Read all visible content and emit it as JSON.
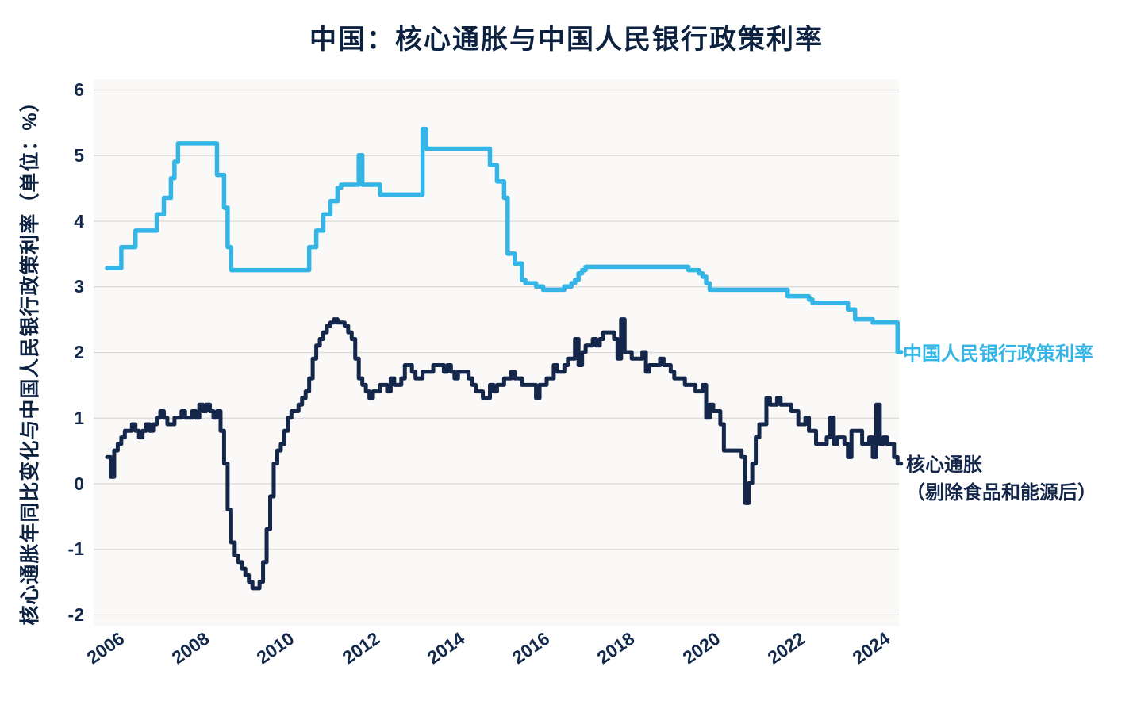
{
  "chart": {
    "title": "中国：核心通胀与中国人民银行政策利率",
    "ylabel": "核心通胀年同比变化与中国人民银行政策利率（单位：%）",
    "legend_policy": "中国人民银行政策利率",
    "legend_core_line1": "核心通胀",
    "legend_core_line2": "（剔除食品和能源后）"
  },
  "chart_data": {
    "type": "line",
    "title": "中国：核心通胀与中国人民银行政策利率",
    "ylabel": "核心通胀年同比变化与中国人民银行政策利率（单位：%）",
    "xlabel": "",
    "x_start_year": 2006,
    "x_frequency": "monthly",
    "xlim": [
      2006,
      2024.75
    ],
    "ylim": [
      -2,
      6
    ],
    "xticks": [
      2006,
      2008,
      2010,
      2012,
      2014,
      2016,
      2018,
      2020,
      2022,
      2024
    ],
    "yticks": [
      6,
      5,
      4,
      3,
      2,
      1,
      0,
      -1,
      -2
    ],
    "grid": "horizontal",
    "grid_color": "#d9d9d9",
    "text_color": "#13294b",
    "title_color": "#0d2240",
    "plot_bg_color": "#faf9f7",
    "legend_position": "right-of-line-end",
    "series": [
      {
        "name": "中国人民银行政策利率",
        "color": "#35b4e6",
        "line_width": 5.5,
        "step": true,
        "values": [
          3.28,
          3.28,
          3.28,
          3.28,
          3.6,
          3.6,
          3.6,
          3.6,
          3.85,
          3.85,
          3.85,
          3.85,
          3.85,
          3.85,
          4.1,
          4.1,
          4.35,
          4.35,
          4.65,
          4.9,
          5.18,
          5.18,
          5.18,
          5.18,
          5.18,
          5.18,
          5.18,
          5.18,
          5.18,
          5.18,
          5.18,
          4.7,
          4.7,
          4.2,
          3.6,
          3.25,
          3.25,
          3.25,
          3.25,
          3.25,
          3.25,
          3.25,
          3.25,
          3.25,
          3.25,
          3.25,
          3.25,
          3.25,
          3.25,
          3.25,
          3.25,
          3.25,
          3.25,
          3.25,
          3.25,
          3.25,
          3.25,
          3.6,
          3.6,
          3.85,
          3.85,
          4.1,
          4.1,
          4.3,
          4.3,
          4.5,
          4.55,
          4.55,
          4.55,
          4.55,
          4.55,
          5.0,
          4.55,
          4.55,
          4.55,
          4.55,
          4.55,
          4.4,
          4.4,
          4.4,
          4.4,
          4.4,
          4.4,
          4.4,
          4.4,
          4.4,
          4.4,
          4.4,
          4.4,
          5.4,
          5.1,
          5.1,
          5.1,
          5.1,
          5.1,
          5.1,
          5.1,
          5.1,
          5.1,
          5.1,
          5.1,
          5.1,
          5.1,
          5.1,
          5.1,
          5.1,
          5.1,
          5.1,
          4.85,
          4.85,
          4.6,
          4.6,
          4.35,
          3.5,
          3.5,
          3.35,
          3.35,
          3.1,
          3.05,
          3.05,
          3.05,
          3.0,
          3.0,
          2.95,
          2.95,
          2.95,
          2.95,
          2.95,
          2.95,
          3.0,
          3.0,
          3.05,
          3.1,
          3.2,
          3.25,
          3.3,
          3.3,
          3.3,
          3.3,
          3.3,
          3.3,
          3.3,
          3.3,
          3.3,
          3.3,
          3.3,
          3.3,
          3.3,
          3.3,
          3.3,
          3.3,
          3.3,
          3.3,
          3.3,
          3.3,
          3.3,
          3.3,
          3.3,
          3.3,
          3.3,
          3.3,
          3.3,
          3.3,
          3.3,
          3.25,
          3.25,
          3.25,
          3.2,
          3.15,
          3.05,
          2.95,
          2.95,
          2.95,
          2.95,
          2.95,
          2.95,
          2.95,
          2.95,
          2.95,
          2.95,
          2.95,
          2.95,
          2.95,
          2.95,
          2.95,
          2.95,
          2.95,
          2.95,
          2.95,
          2.95,
          2.95,
          2.95,
          2.85,
          2.85,
          2.85,
          2.85,
          2.85,
          2.85,
          2.8,
          2.75,
          2.75,
          2.75,
          2.75,
          2.75,
          2.75,
          2.75,
          2.75,
          2.75,
          2.75,
          2.65,
          2.65,
          2.5,
          2.5,
          2.5,
          2.5,
          2.5,
          2.45,
          2.45,
          2.45,
          2.45,
          2.45,
          2.45,
          2.45,
          2.0
        ]
      },
      {
        "name": "核心通胀（剔除食品和能源后）",
        "color": "#14274a",
        "line_width": 5,
        "step": true,
        "values": [
          0.4,
          0.1,
          0.5,
          0.6,
          0.7,
          0.8,
          0.8,
          0.9,
          0.8,
          0.7,
          0.8,
          0.9,
          0.8,
          0.9,
          1.0,
          1.1,
          1.0,
          0.9,
          0.9,
          1.0,
          1.0,
          1.1,
          1.0,
          1.0,
          1.1,
          1.0,
          1.2,
          1.1,
          1.2,
          1.1,
          1.0,
          1.1,
          0.8,
          0.3,
          -0.4,
          -0.9,
          -1.1,
          -1.2,
          -1.3,
          -1.4,
          -1.5,
          -1.6,
          -1.6,
          -1.5,
          -1.2,
          -0.7,
          -0.2,
          0.3,
          0.5,
          0.6,
          0.8,
          1.0,
          1.1,
          1.1,
          1.2,
          1.3,
          1.4,
          1.6,
          1.9,
          2.1,
          2.2,
          2.3,
          2.4,
          2.45,
          2.5,
          2.45,
          2.45,
          2.4,
          2.3,
          2.2,
          1.9,
          1.6,
          1.5,
          1.4,
          1.3,
          1.4,
          1.4,
          1.5,
          1.5,
          1.4,
          1.6,
          1.5,
          1.5,
          1.6,
          1.8,
          1.8,
          1.7,
          1.6,
          1.6,
          1.7,
          1.7,
          1.7,
          1.8,
          1.8,
          1.8,
          1.7,
          1.8,
          1.7,
          1.6,
          1.7,
          1.7,
          1.7,
          1.6,
          1.5,
          1.4,
          1.4,
          1.3,
          1.3,
          1.5,
          1.4,
          1.5,
          1.5,
          1.6,
          1.6,
          1.7,
          1.6,
          1.6,
          1.5,
          1.5,
          1.5,
          1.5,
          1.3,
          1.5,
          1.5,
          1.6,
          1.6,
          1.8,
          1.7,
          1.7,
          1.8,
          1.9,
          1.9,
          2.2,
          1.8,
          2.0,
          2.1,
          2.1,
          2.2,
          2.1,
          2.2,
          2.3,
          2.3,
          2.3,
          2.2,
          1.9,
          2.5,
          2.0,
          2.0,
          1.9,
          1.9,
          1.9,
          2.0,
          1.7,
          1.8,
          1.8,
          1.8,
          1.9,
          1.8,
          1.8,
          1.7,
          1.6,
          1.6,
          1.6,
          1.5,
          1.5,
          1.5,
          1.4,
          1.4,
          1.5,
          1.0,
          1.2,
          1.1,
          1.1,
          0.9,
          0.5,
          0.5,
          0.5,
          0.5,
          0.5,
          0.4,
          -0.3,
          0.0,
          0.3,
          0.7,
          0.9,
          0.9,
          1.3,
          1.2,
          1.2,
          1.3,
          1.2,
          1.2,
          1.2,
          1.1,
          1.1,
          0.9,
          0.9,
          1.0,
          0.8,
          0.8,
          0.6,
          0.6,
          0.6,
          0.7,
          1.0,
          0.6,
          0.7,
          0.7,
          0.6,
          0.4,
          0.8,
          0.8,
          0.8,
          0.6,
          0.6,
          0.7,
          0.4,
          1.2,
          0.6,
          0.7,
          0.6,
          0.6,
          0.4,
          0.3
        ]
      }
    ]
  }
}
